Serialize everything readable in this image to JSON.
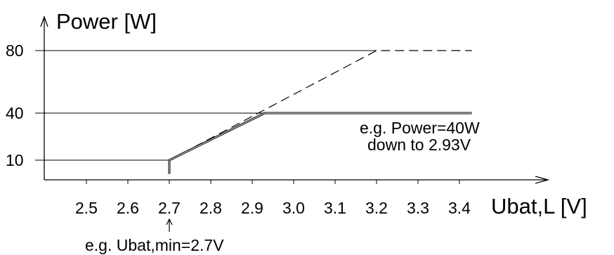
{
  "chart_data": {
    "type": "line",
    "title": "",
    "xlabel": "Ubat,L [V]",
    "ylabel": "Power [W]",
    "x_ticks": [
      "2.5",
      "2.6",
      "2.7",
      "2.8",
      "2.9",
      "3.0",
      "3.1",
      "3.2",
      "3.3",
      "3.4"
    ],
    "y_ticks": [
      "10",
      "40",
      "80"
    ],
    "xlim": [
      2.4,
      3.45
    ],
    "ylim": [
      0,
      85
    ],
    "grid": "horizontal lines at y ticks",
    "series": [
      {
        "style": "dashed",
        "x": [
          2.7,
          3.2,
          3.43
        ],
        "y": [
          10,
          80,
          80
        ]
      },
      {
        "style": "solid-bold",
        "x": [
          2.7,
          2.7,
          2.93,
          3.43
        ],
        "y": [
          3,
          10,
          40,
          40
        ]
      }
    ],
    "annotations": {
      "power_note_line1": "e.g. Power=40W",
      "power_note_line2": "down to 2.93V",
      "ubat_note": "e.g. Ubat,min=2.7V"
    }
  }
}
